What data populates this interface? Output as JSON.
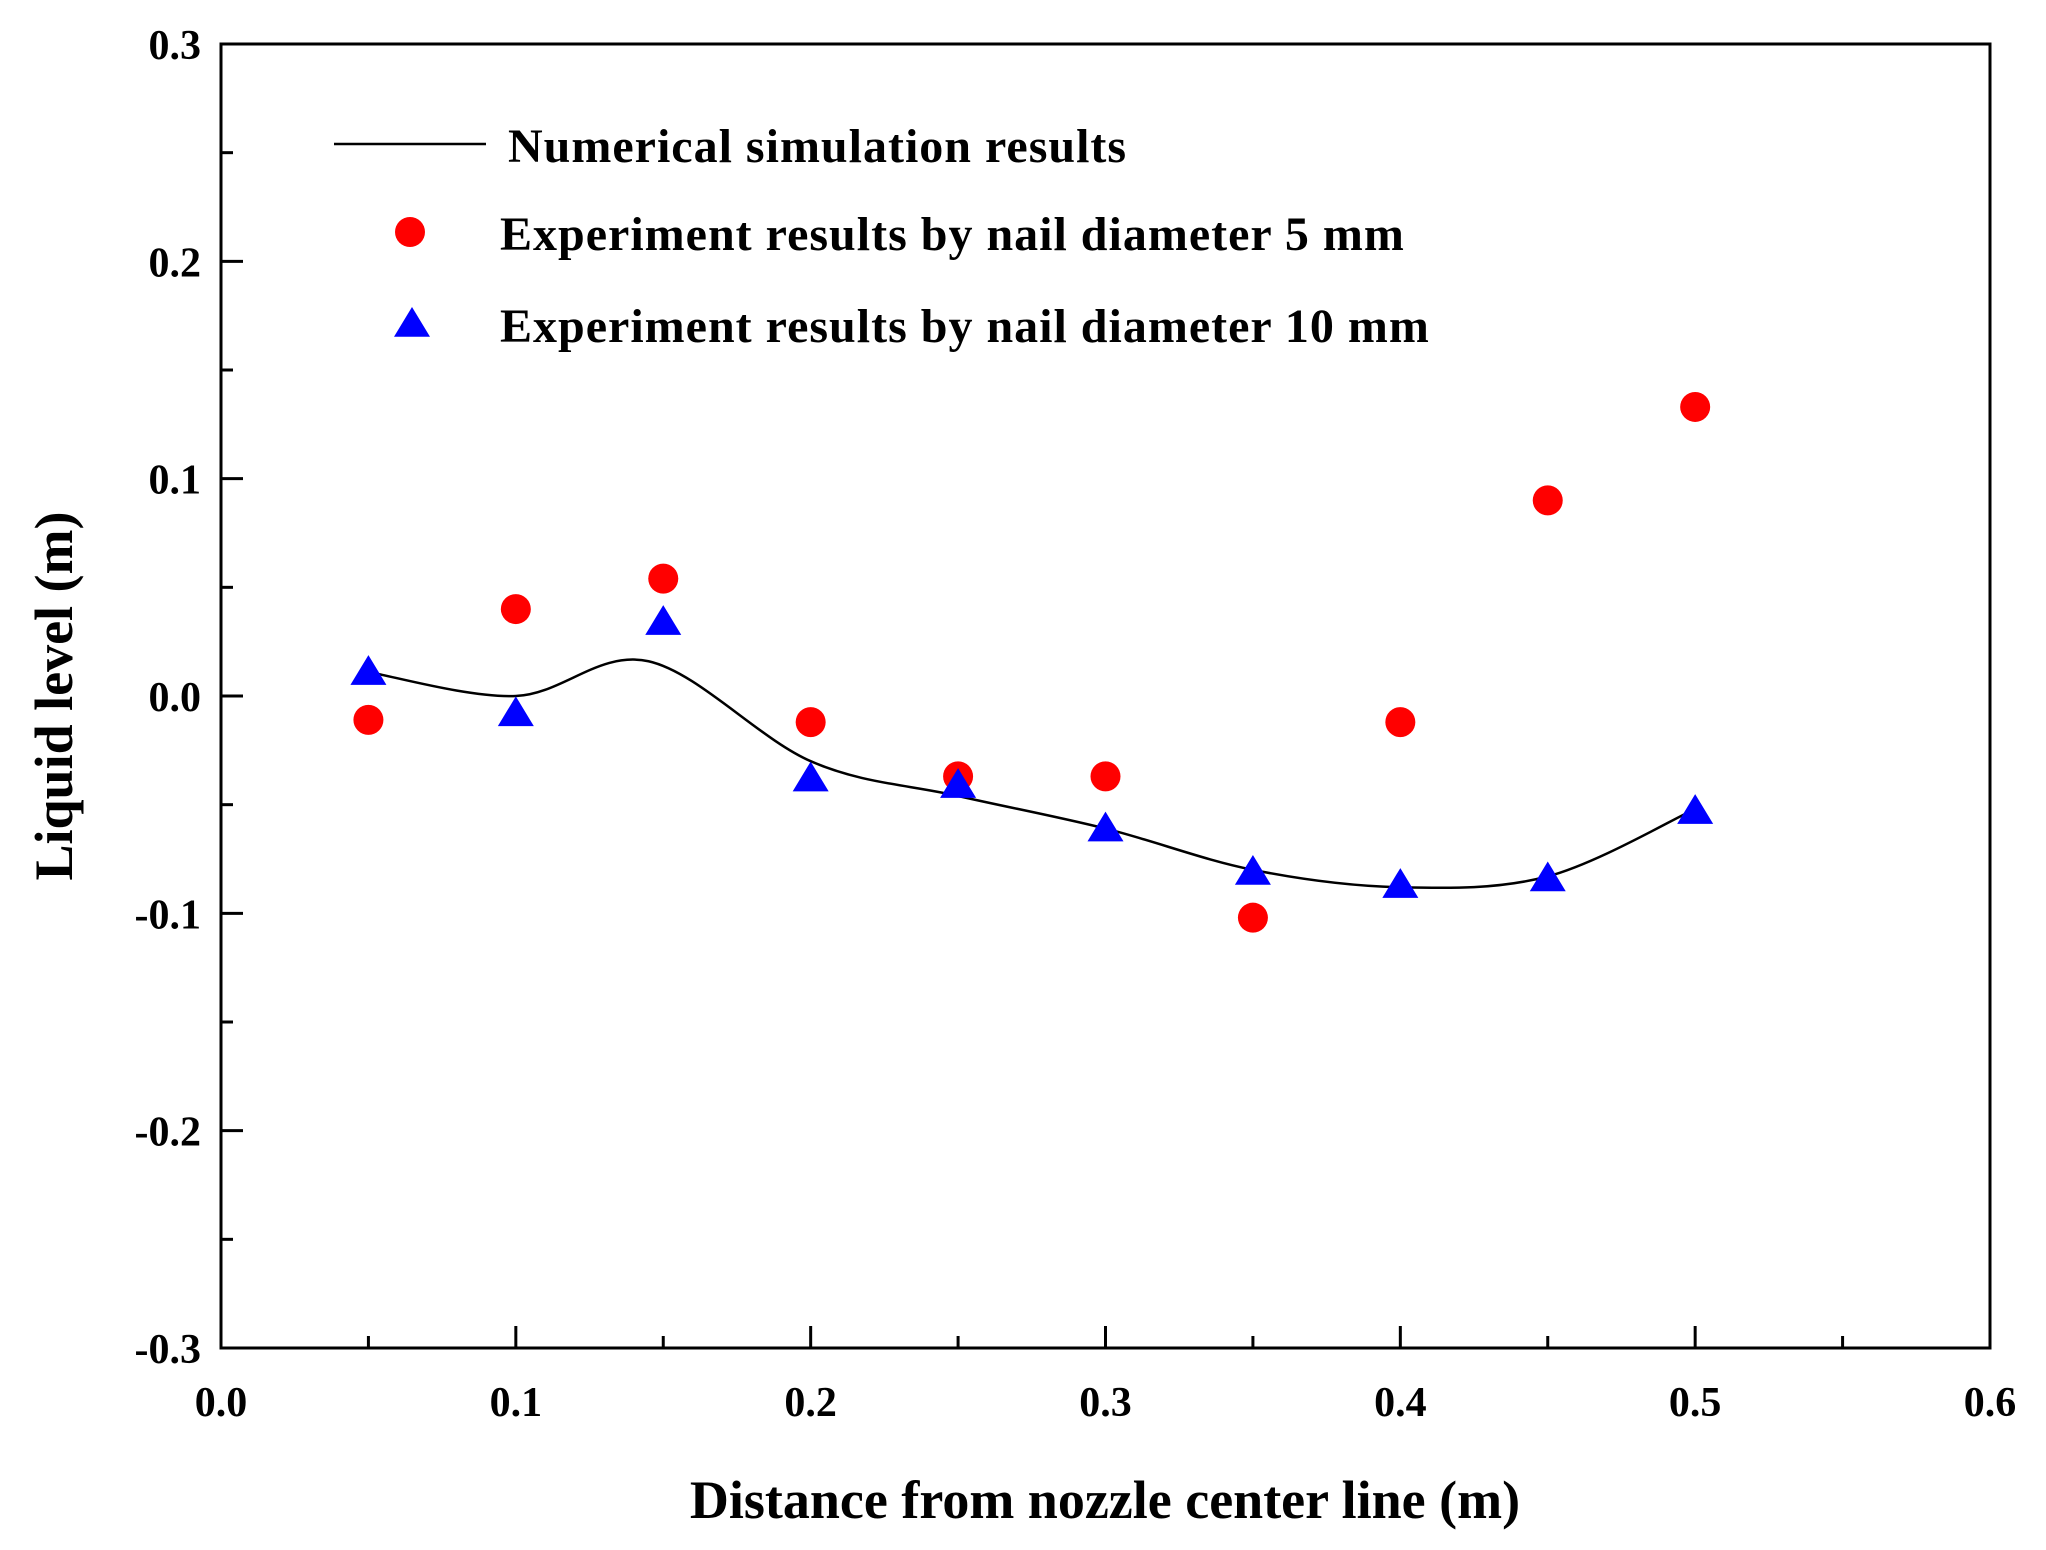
{
  "chart_data": {
    "type": "scatter",
    "title": "",
    "xlabel": "Distance from nozzle center line (m)",
    "ylabel": "Liquid level (m)",
    "xlim": [
      0.0,
      0.6
    ],
    "ylim": [
      -0.3,
      0.3
    ],
    "x_ticks": [
      "0.0",
      "0.1",
      "0.2",
      "0.3",
      "0.4",
      "0.5",
      "0.6"
    ],
    "y_ticks": [
      "-0.3",
      "-0.2",
      "-0.1",
      "0.0",
      "0.1",
      "0.2",
      "0.3"
    ],
    "grid": false,
    "legend_position": "top-left",
    "series": [
      {
        "name": "Numerical simulation results",
        "kind": "line",
        "color": "#000000",
        "x": [
          0.05,
          0.1,
          0.145,
          0.2,
          0.25,
          0.3,
          0.35,
          0.4,
          0.45,
          0.5
        ],
        "values": [
          0.011,
          0.0,
          0.016,
          -0.03,
          -0.046,
          -0.061,
          -0.08,
          -0.088,
          -0.083,
          -0.052
        ]
      },
      {
        "name": "Experiment results by nail diameter 5 mm",
        "kind": "marker-circle",
        "color": "#ff0000",
        "x": [
          0.05,
          0.1,
          0.15,
          0.2,
          0.25,
          0.3,
          0.35,
          0.4,
          0.45,
          0.5
        ],
        "values": [
          -0.011,
          0.04,
          0.054,
          -0.012,
          -0.037,
          -0.037,
          -0.102,
          -0.012,
          0.09,
          0.133
        ]
      },
      {
        "name": "Experiment results by nail diameter 10 mm",
        "kind": "marker-triangle",
        "color": "#0000ff",
        "x": [
          0.05,
          0.1,
          0.15,
          0.2,
          0.25,
          0.3,
          0.35,
          0.4,
          0.45,
          0.5
        ],
        "values": [
          0.011,
          -0.008,
          0.034,
          -0.038,
          -0.041,
          -0.061,
          -0.081,
          -0.087,
          -0.084,
          -0.053
        ]
      }
    ]
  }
}
